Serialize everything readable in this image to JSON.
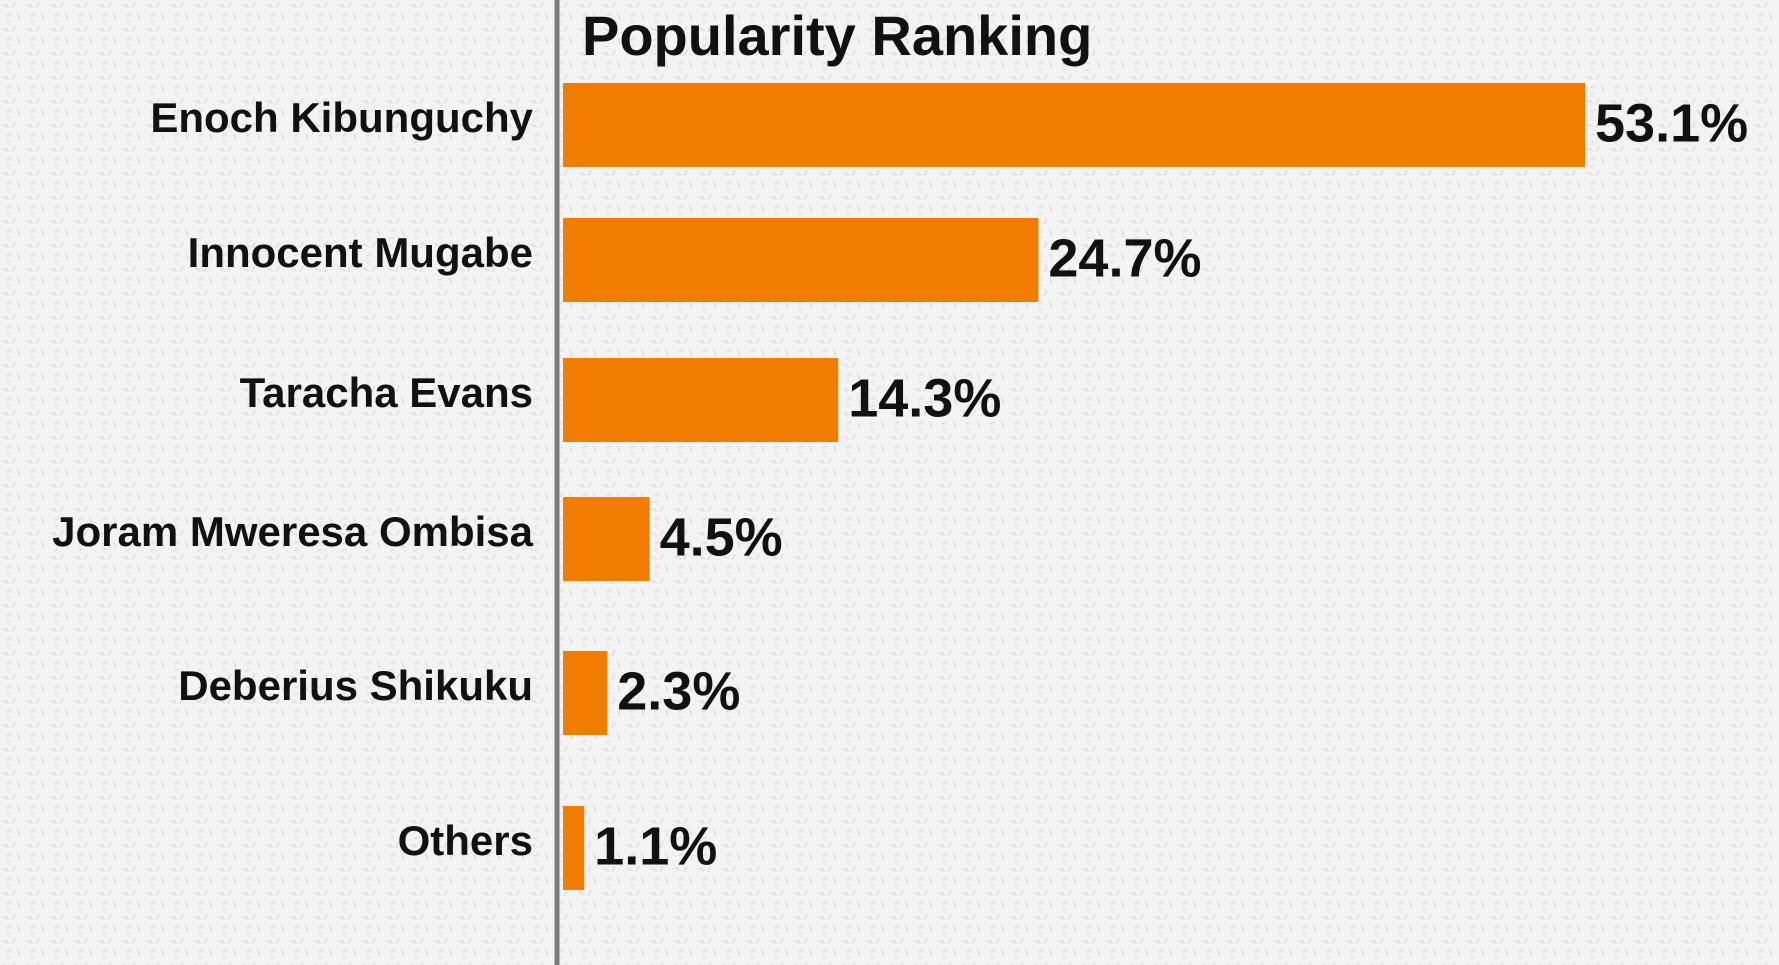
{
  "chart_data": {
    "type": "barh",
    "title": "Popularity Ranking",
    "categories": [
      "Enoch Kibunguchy",
      "Innocent Mugabe",
      "Taracha Evans",
      "Joram Mweresa Ombisa",
      "Deberius Shikuku",
      "Others"
    ],
    "values": [
      53.1,
      24.7,
      14.3,
      4.5,
      2.3,
      1.1
    ],
    "value_labels": [
      "53.1%",
      "24.7%",
      "14.3%",
      "4.5%",
      "2.3%",
      "1.1%"
    ],
    "color": "#f07c00"
  }
}
